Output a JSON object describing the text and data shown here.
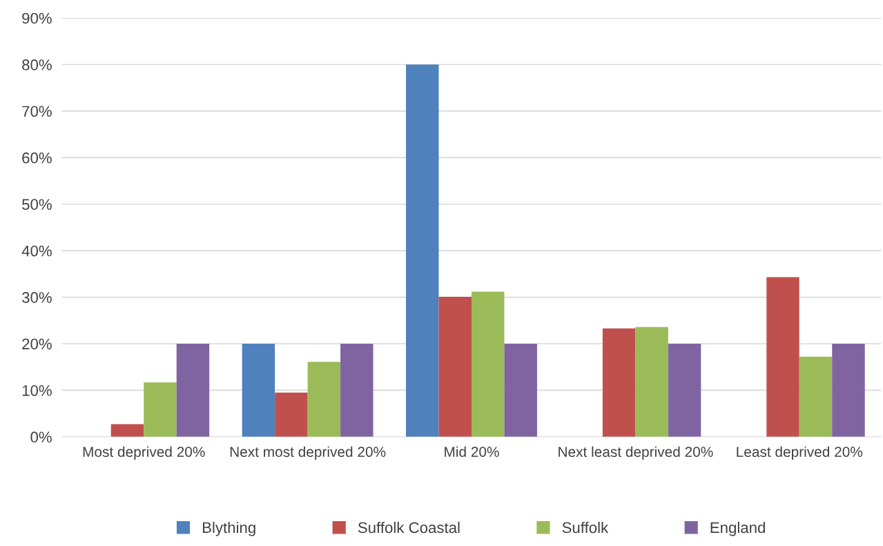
{
  "chart_data": {
    "type": "bar",
    "categories": [
      "Most deprived 20%",
      "Next most deprived 20%",
      "Mid 20%",
      "Next least deprived 20%",
      "Least deprived 20%"
    ],
    "series": [
      {
        "name": "Blything",
        "color": "#4f81bd",
        "values": [
          0,
          20,
          80,
          0,
          0
        ]
      },
      {
        "name": "Suffolk Coastal",
        "color": "#c0504d",
        "values": [
          2.7,
          9.5,
          30.1,
          23.3,
          34.3
        ]
      },
      {
        "name": "Suffolk",
        "color": "#9bbb59",
        "values": [
          11.7,
          16.1,
          31.2,
          23.6,
          17.2
        ]
      },
      {
        "name": "England",
        "color": "#8064a2",
        "values": [
          20,
          20,
          20,
          20,
          20
        ]
      }
    ],
    "ylim": [
      0,
      90
    ],
    "yticks": [
      {
        "value": 0,
        "label": "0%"
      },
      {
        "value": 10,
        "label": "10%"
      },
      {
        "value": 20,
        "label": "20%"
      },
      {
        "value": 30,
        "label": "30%"
      },
      {
        "value": 40,
        "label": "40%"
      },
      {
        "value": 50,
        "label": "50%"
      },
      {
        "value": 60,
        "label": "60%"
      },
      {
        "value": 70,
        "label": "70%"
      },
      {
        "value": 80,
        "label": "80%"
      },
      {
        "value": 90,
        "label": "90%"
      }
    ],
    "grid": "y",
    "legend": "bottom"
  }
}
